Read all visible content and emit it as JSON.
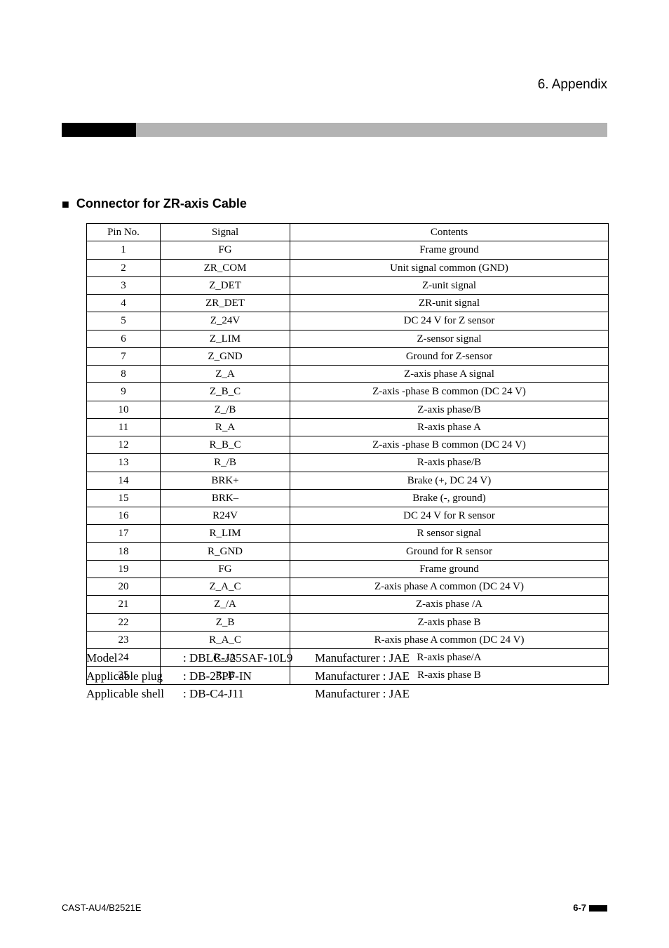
{
  "header": {
    "chapter": "6. Appendix"
  },
  "section": {
    "marker": "■",
    "title": "Connector for ZR-axis Cable"
  },
  "colors": {
    "black": "#000000",
    "gray_bar": "#b3b3b3",
    "background": "#ffffff"
  },
  "table": {
    "columns": [
      "Pin No.",
      "Signal",
      "Contents"
    ],
    "rows": [
      [
        "1",
        "FG",
        "Frame ground"
      ],
      [
        "2",
        "ZR_COM",
        "Unit signal common (GND)"
      ],
      [
        "3",
        "Z_DET",
        "Z-unit signal"
      ],
      [
        "4",
        "ZR_DET",
        "ZR-unit signal"
      ],
      [
        "5",
        "Z_24V",
        "DC 24 V for Z sensor"
      ],
      [
        "6",
        "Z_LIM",
        "Z-sensor signal"
      ],
      [
        "7",
        "Z_GND",
        "Ground for Z-sensor"
      ],
      [
        "8",
        "Z_A",
        "Z-axis phase A signal"
      ],
      [
        "9",
        "Z_B_C",
        "Z-axis -phase B common (DC 24 V)"
      ],
      [
        "10",
        "Z_/B",
        "Z-axis phase/B"
      ],
      [
        "11",
        "R_A",
        "R-axis phase A"
      ],
      [
        "12",
        "R_B_C",
        "Z-axis -phase B common (DC 24 V)"
      ],
      [
        "13",
        "R_/B",
        "R-axis phase/B"
      ],
      [
        "14",
        "BRK+",
        "Brake (+, DC 24 V)"
      ],
      [
        "15",
        "BRK–",
        "Brake (-, ground)"
      ],
      [
        "16",
        "R24V",
        "DC 24 V for R sensor"
      ],
      [
        "17",
        "R_LIM",
        "R sensor signal"
      ],
      [
        "18",
        "R_GND",
        "Ground for R sensor"
      ],
      [
        "19",
        "FG",
        "Frame ground"
      ],
      [
        "20",
        "Z_A_C",
        "Z-axis phase A common (DC 24 V)"
      ],
      [
        "21",
        "Z_/A",
        "Z-axis phase /A"
      ],
      [
        "22",
        "Z_B",
        "Z-axis phase B"
      ],
      [
        "23",
        "R_A_C",
        "R-axis phase A common (DC 24 V)"
      ],
      [
        "24",
        "R_/A",
        "R-axis phase/A"
      ],
      [
        "25",
        "R_B",
        "R-axis phase B"
      ]
    ]
  },
  "specs": {
    "rows": [
      {
        "label": "Model",
        "value": ": DBLC-J25SAF-10L9",
        "man": "Manufacturer : JAE"
      },
      {
        "label": "Applicable plug",
        "value": ": DB-25PF-IN",
        "man": "Manufacturer : JAE"
      },
      {
        "label": "Applicable shell",
        "value": ": DB-C4-J11",
        "man": "Manufacturer : JAE"
      }
    ]
  },
  "footer": {
    "doc_id": "CAST-AU4/B2521E",
    "page_num": "6-7"
  }
}
